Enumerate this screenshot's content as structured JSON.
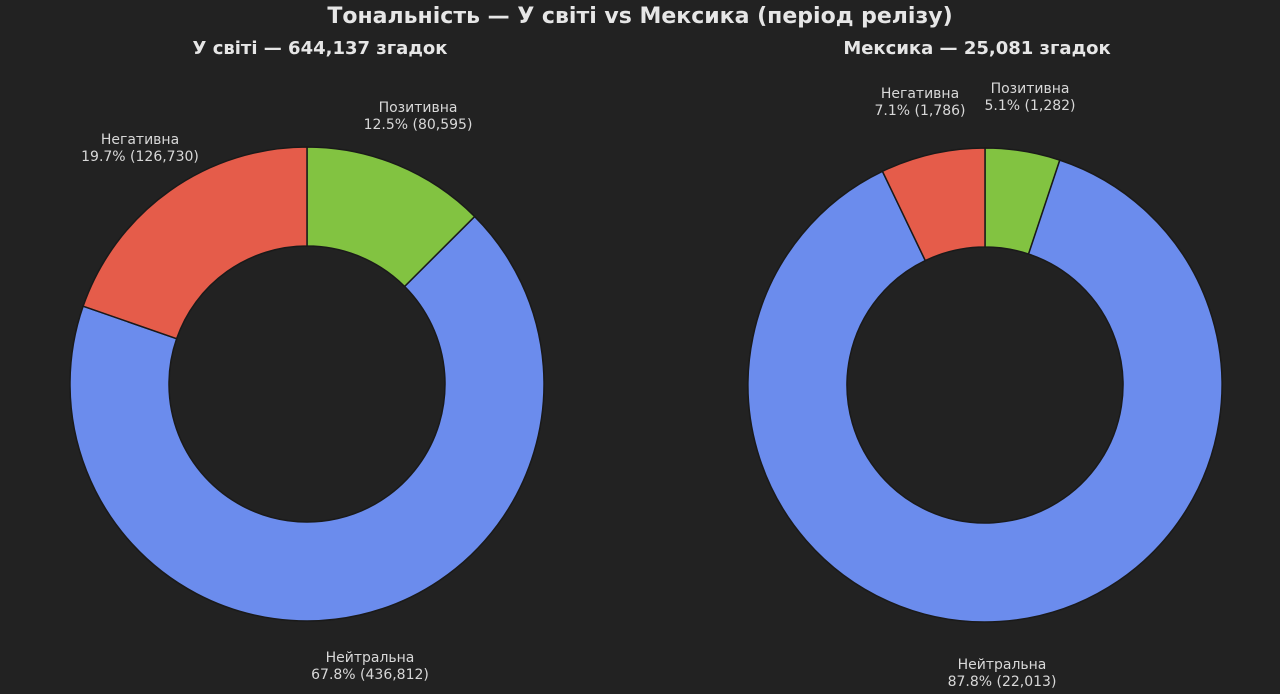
{
  "figure_title": "Тональність — У світі vs Мексика (період релізу)",
  "colors": {
    "background": "#222222",
    "positive": "#82c341",
    "neutral": "#6b8ced",
    "negative": "#e55c4a",
    "text": "#e6e6e6"
  },
  "chart_data": [
    {
      "type": "pie",
      "title": "У світі — 644,137 згадок",
      "slices": [
        {
          "label": "Позитивна",
          "percent_text": "12.5% (80,595)",
          "value": 80595,
          "color": "#82c341"
        },
        {
          "label": "Нейтральна",
          "percent_text": "67.8% (436,812)",
          "value": 436812,
          "color": "#6b8ced"
        },
        {
          "label": "Негативна",
          "percent_text": "19.7% (126,730)",
          "value": 126730,
          "color": "#e55c4a"
        }
      ]
    },
    {
      "type": "pie",
      "title": "Мексика — 25,081 згадок",
      "slices": [
        {
          "label": "Позитивна",
          "percent_text": "5.1% (1,282)",
          "value": 1282,
          "color": "#82c341"
        },
        {
          "label": "Нейтральна",
          "percent_text": "87.8% (22,013)",
          "value": 22013,
          "color": "#6b8ced"
        },
        {
          "label": "Негативна",
          "percent_text": "7.1% (1,786)",
          "value": 1786,
          "color": "#e55c4a"
        }
      ]
    }
  ]
}
